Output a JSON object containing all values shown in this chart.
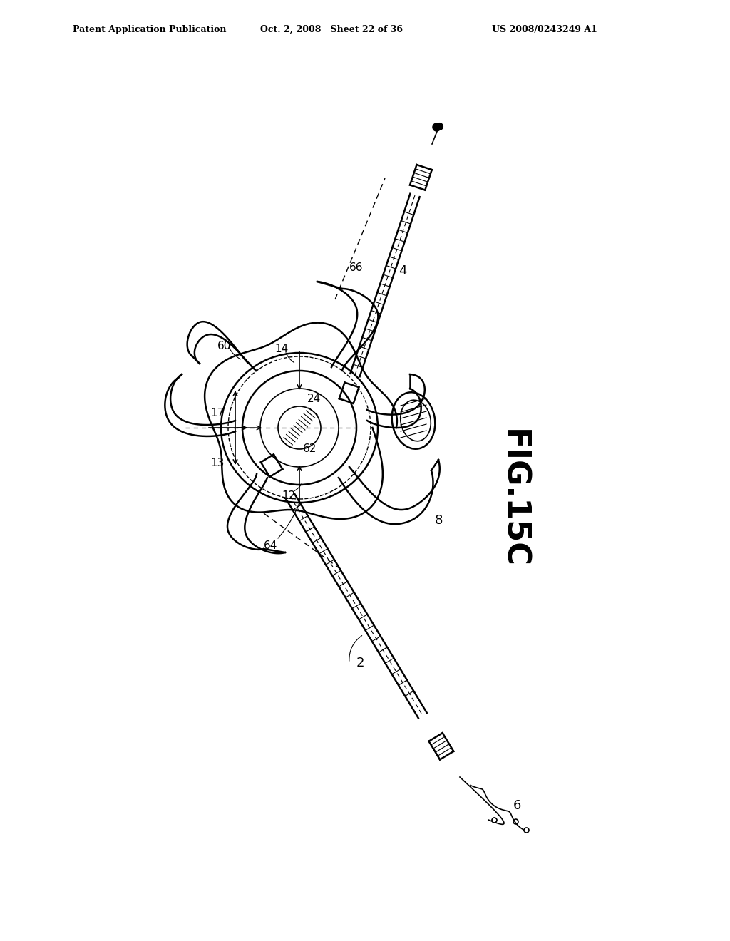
{
  "title": "",
  "header_left": "Patent Application Publication",
  "header_center": "Oct. 2, 2008   Sheet 22 of 36",
  "header_right": "US 2008/0243249 A1",
  "fig_label": "FIG.15C",
  "background_color": "#ffffff",
  "line_color": "#000000"
}
